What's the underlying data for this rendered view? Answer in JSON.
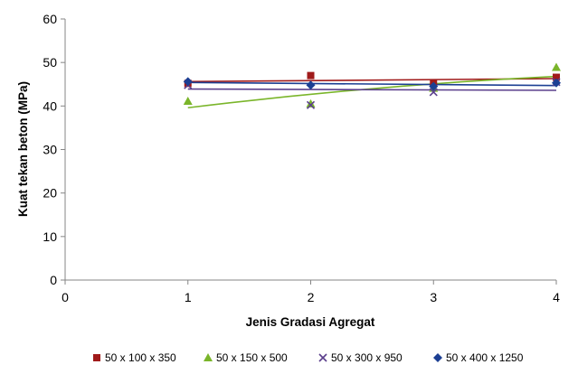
{
  "chart_data": {
    "type": "scatter",
    "title": "",
    "xlabel": "Jenis Gradasi Agregat",
    "ylabel": "Kuat tekan beton (MPa)",
    "xlim": [
      0,
      4
    ],
    "ylim": [
      0,
      60
    ],
    "xticks": [
      "0",
      "1",
      "2",
      "3",
      "4"
    ],
    "yticks": [
      "0",
      "10",
      "20",
      "30",
      "40",
      "50",
      "60"
    ],
    "grid": false,
    "legend": "bottom",
    "series": [
      {
        "name": "50 x 100 x 350",
        "color": "#a01a1a",
        "marker": "square",
        "points": [
          [
            1,
            45.2
          ],
          [
            2,
            47.0
          ],
          [
            3,
            45.2
          ],
          [
            4,
            46.6
          ]
        ],
        "trendline": {
          "type": "linear",
          "from": [
            1,
            45.6
          ],
          "to": [
            4,
            46.3
          ]
        }
      },
      {
        "name": "50 x 150 x 500",
        "color": "#7ab52a",
        "marker": "triangle",
        "points": [
          [
            1,
            41.1
          ],
          [
            2,
            40.5
          ],
          [
            3,
            44.1
          ],
          [
            4,
            48.9
          ]
        ],
        "trendline": {
          "type": "curve",
          "from": [
            1,
            39.6
          ],
          "to": [
            4,
            46.8
          ]
        }
      },
      {
        "name": "50 x 300 x 950",
        "color": "#5b3f8c",
        "marker": "x",
        "points": [
          [
            1,
            44.8
          ],
          [
            2,
            40.2
          ],
          [
            3,
            43.2
          ],
          [
            4,
            45.5
          ]
        ],
        "trendline": {
          "type": "linear",
          "from": [
            1,
            43.9
          ],
          "to": [
            4,
            43.6
          ]
        }
      },
      {
        "name": "50 x 400 x 1250",
        "color": "#1c3f93",
        "marker": "diamond",
        "points": [
          [
            1,
            45.6
          ],
          [
            2,
            44.8
          ],
          [
            3,
            44.5
          ],
          [
            4,
            45.3
          ]
        ],
        "trendline": {
          "type": "linear",
          "from": [
            1,
            45.4
          ],
          "to": [
            4,
            44.7
          ]
        }
      }
    ]
  }
}
